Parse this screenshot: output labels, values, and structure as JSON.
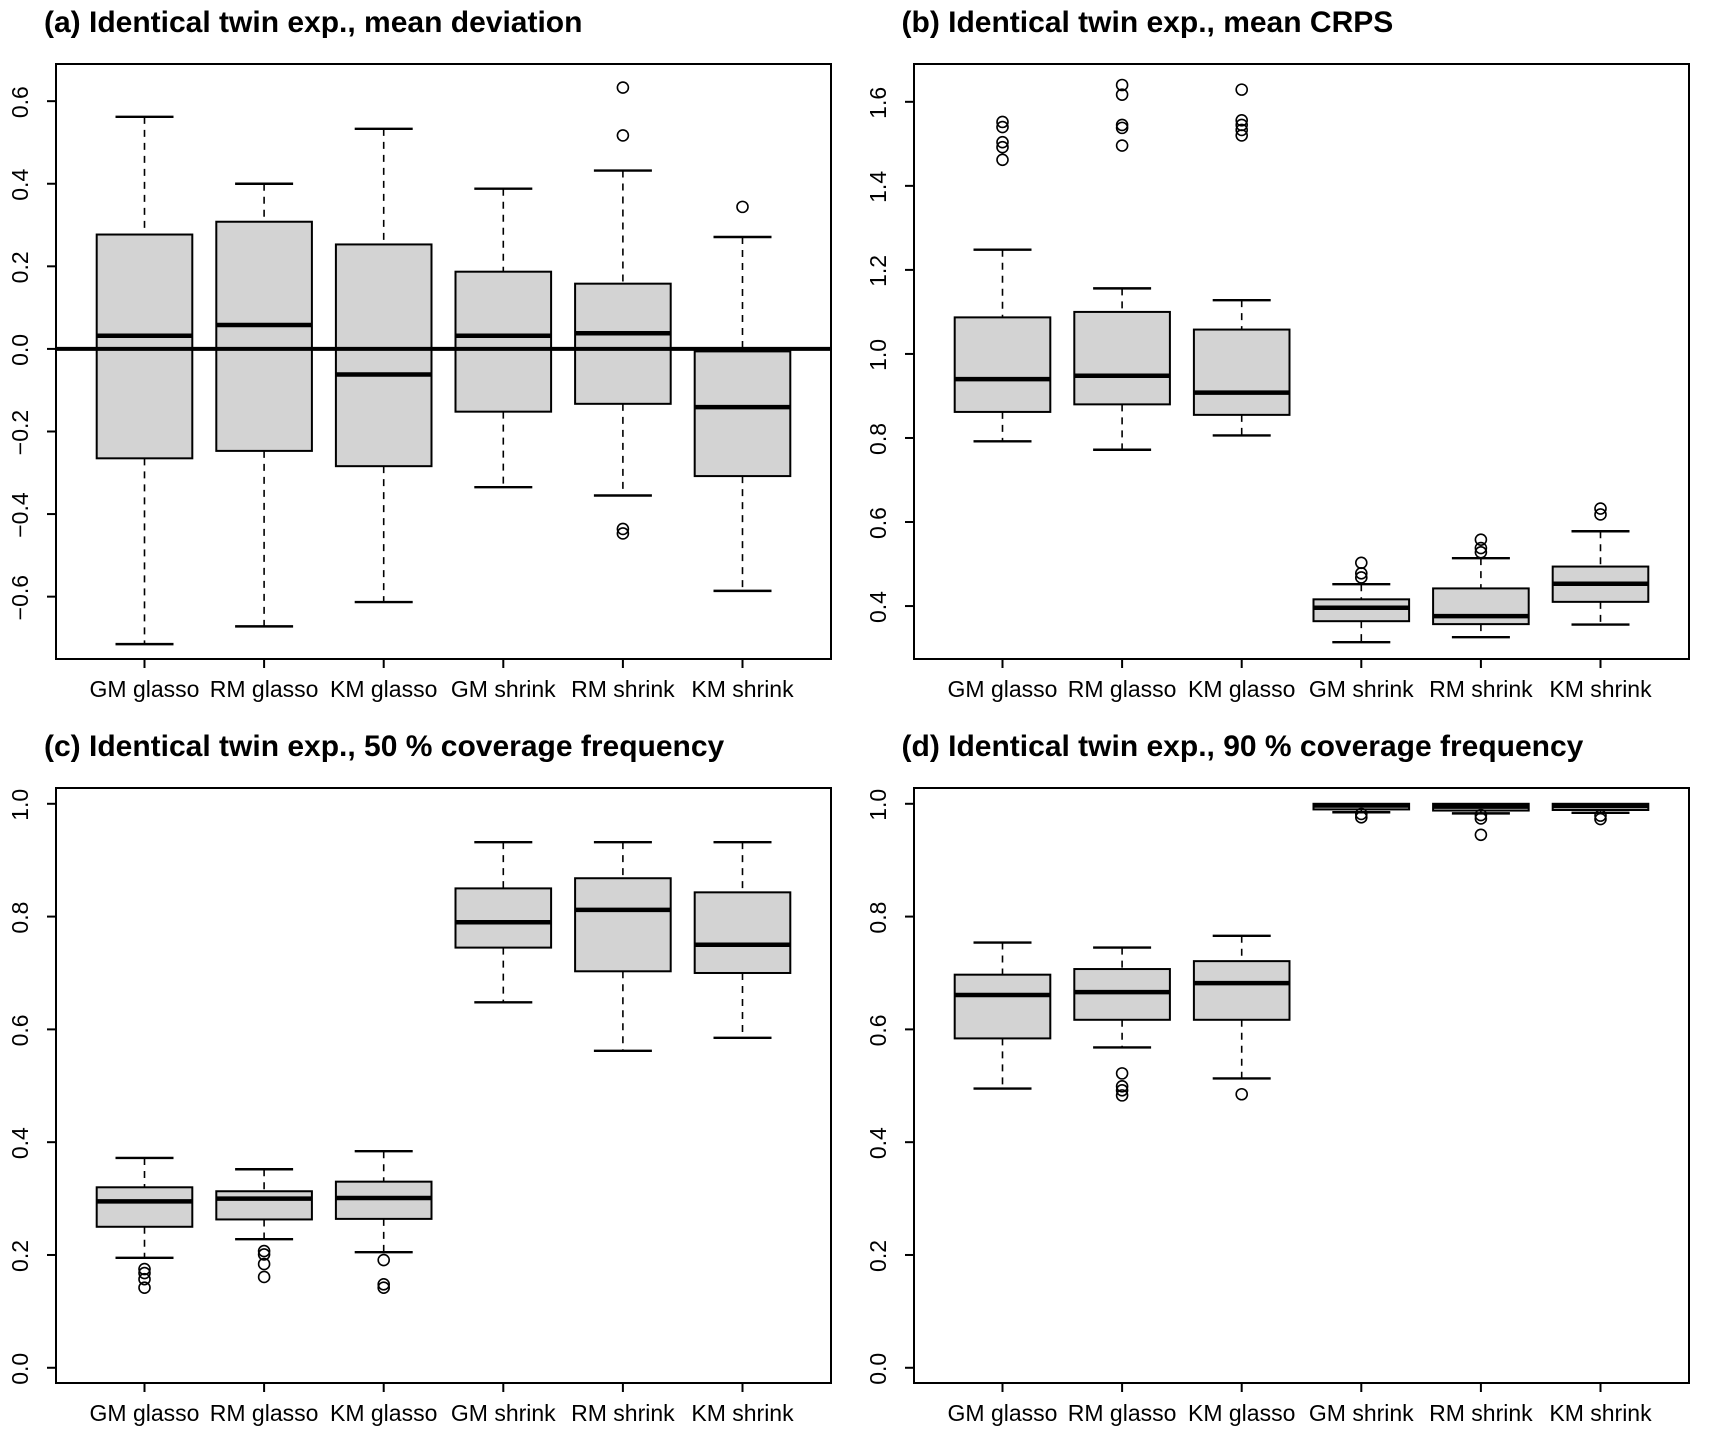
{
  "page": {
    "background": "#ffffff",
    "line_color": "#000000",
    "box_fill": "#d3d3d3"
  },
  "chart_data": [
    {
      "id": "a",
      "type": "boxplot",
      "title": "(a) Identical twin exp., mean deviation",
      "categories": [
        "GM glasso",
        "RM glasso",
        "KM glasso",
        "GM shrink",
        "RM shrink",
        "KM shrink"
      ],
      "ylim": [
        -0.751,
        0.69
      ],
      "yticks": [
        -0.6,
        -0.4,
        -0.2,
        0.0,
        0.2,
        0.4,
        0.6
      ],
      "refline": 0.0,
      "grid": false,
      "legend": null,
      "series": [
        {
          "name": "GM glasso",
          "low": -0.715,
          "q1": -0.265,
          "med": 0.032,
          "q3": 0.277,
          "high": 0.562,
          "outliers": []
        },
        {
          "name": "RM glasso",
          "low": -0.672,
          "q1": -0.247,
          "med": 0.058,
          "q3": 0.308,
          "high": 0.4,
          "outliers": []
        },
        {
          "name": "KM glasso",
          "low": -0.613,
          "q1": -0.284,
          "med": -0.062,
          "q3": 0.253,
          "high": 0.533,
          "outliers": []
        },
        {
          "name": "GM shrink",
          "low": -0.335,
          "q1": -0.152,
          "med": 0.032,
          "q3": 0.187,
          "high": 0.388,
          "outliers": []
        },
        {
          "name": "RM shrink",
          "low": -0.355,
          "q1": -0.133,
          "med": 0.038,
          "q3": 0.158,
          "high": 0.432,
          "outliers": [
            0.633,
            0.517,
            -0.436,
            -0.447
          ]
        },
        {
          "name": "KM shrink",
          "low": -0.586,
          "q1": -0.308,
          "med": -0.141,
          "q3": -0.006,
          "high": 0.271,
          "outliers": [
            0.344
          ]
        }
      ]
    },
    {
      "id": "b",
      "type": "boxplot",
      "title": "(b) Identical twin exp., mean CRPS",
      "categories": [
        "GM glasso",
        "RM glasso",
        "KM glasso",
        "GM shrink",
        "RM shrink",
        "KM shrink"
      ],
      "ylim": [
        0.274,
        1.69
      ],
      "yticks": [
        0.4,
        0.6,
        0.8,
        1.0,
        1.2,
        1.4,
        1.6
      ],
      "refline": null,
      "grid": false,
      "legend": null,
      "series": [
        {
          "name": "GM glasso",
          "low": 0.792,
          "q1": 0.862,
          "med": 0.94,
          "q3": 1.087,
          "high": 1.248,
          "outliers": [
            1.552,
            1.54,
            1.504,
            1.492,
            1.462
          ]
        },
        {
          "name": "RM glasso",
          "low": 0.772,
          "q1": 0.88,
          "med": 0.948,
          "q3": 1.1,
          "high": 1.156,
          "outliers": [
            1.64,
            1.617,
            1.545,
            1.538,
            1.496
          ]
        },
        {
          "name": "KM glasso",
          "low": 0.806,
          "q1": 0.855,
          "med": 0.908,
          "q3": 1.058,
          "high": 1.128,
          "outliers": [
            1.629,
            1.556,
            1.545,
            1.533,
            1.52
          ]
        },
        {
          "name": "GM shrink",
          "low": 0.314,
          "q1": 0.364,
          "med": 0.396,
          "q3": 0.416,
          "high": 0.452,
          "outliers": [
            0.503,
            0.478,
            0.468
          ]
        },
        {
          "name": "RM shrink",
          "low": 0.326,
          "q1": 0.357,
          "med": 0.376,
          "q3": 0.442,
          "high": 0.514,
          "outliers": [
            0.558,
            0.538,
            0.528
          ]
        },
        {
          "name": "KM shrink",
          "low": 0.356,
          "q1": 0.41,
          "med": 0.453,
          "q3": 0.494,
          "high": 0.578,
          "outliers": [
            0.632,
            0.618
          ]
        }
      ]
    },
    {
      "id": "c",
      "type": "boxplot",
      "title": "(c) Identical twin exp., 50 % coverage frequency",
      "categories": [
        "GM glasso",
        "RM glasso",
        "KM glasso",
        "GM shrink",
        "RM shrink",
        "KM shrink"
      ],
      "ylim": [
        -0.027,
        1.028
      ],
      "yticks": [
        0.0,
        0.2,
        0.4,
        0.6,
        0.8,
        1.0
      ],
      "refline": null,
      "grid": false,
      "legend": null,
      "series": [
        {
          "name": "GM glasso",
          "low": 0.195,
          "q1": 0.25,
          "med": 0.295,
          "q3": 0.32,
          "high": 0.372,
          "outliers": [
            0.175,
            0.168,
            0.157,
            0.142
          ]
        },
        {
          "name": "RM glasso",
          "low": 0.228,
          "q1": 0.263,
          "med": 0.3,
          "q3": 0.313,
          "high": 0.352,
          "outliers": [
            0.207,
            0.201,
            0.184,
            0.161
          ]
        },
        {
          "name": "KM glasso",
          "low": 0.205,
          "q1": 0.264,
          "med": 0.301,
          "q3": 0.33,
          "high": 0.384,
          "outliers": [
            0.191,
            0.148,
            0.142
          ]
        },
        {
          "name": "GM shrink",
          "low": 0.648,
          "q1": 0.745,
          "med": 0.79,
          "q3": 0.85,
          "high": 0.932,
          "outliers": []
        },
        {
          "name": "RM shrink",
          "low": 0.562,
          "q1": 0.703,
          "med": 0.812,
          "q3": 0.868,
          "high": 0.932,
          "outliers": []
        },
        {
          "name": "KM shrink",
          "low": 0.585,
          "q1": 0.7,
          "med": 0.75,
          "q3": 0.843,
          "high": 0.932,
          "outliers": []
        }
      ]
    },
    {
      "id": "d",
      "type": "boxplot",
      "title": "(d) Identical twin exp., 90 % coverage frequency",
      "categories": [
        "GM glasso",
        "RM glasso",
        "KM glasso",
        "GM shrink",
        "RM shrink",
        "KM shrink"
      ],
      "ylim": [
        -0.027,
        1.028
      ],
      "yticks": [
        0.0,
        0.2,
        0.4,
        0.6,
        0.8,
        1.0
      ],
      "refline": null,
      "grid": false,
      "legend": null,
      "series": [
        {
          "name": "GM glasso",
          "low": 0.495,
          "q1": 0.584,
          "med": 0.661,
          "q3": 0.697,
          "high": 0.754,
          "outliers": []
        },
        {
          "name": "RM glasso",
          "low": 0.568,
          "q1": 0.617,
          "med": 0.666,
          "q3": 0.707,
          "high": 0.745,
          "outliers": [
            0.522,
            0.499,
            0.492,
            0.483
          ]
        },
        {
          "name": "KM glasso",
          "low": 0.513,
          "q1": 0.617,
          "med": 0.682,
          "q3": 0.721,
          "high": 0.766,
          "outliers": [
            0.485
          ]
        },
        {
          "name": "GM shrink",
          "low": 0.985,
          "q1": 0.99,
          "med": 0.997,
          "q3": 1.0,
          "high": 1.0,
          "outliers": [
            0.982,
            0.976
          ]
        },
        {
          "name": "RM shrink",
          "low": 0.983,
          "q1": 0.988,
          "med": 0.995,
          "q3": 1.0,
          "high": 1.0,
          "outliers": [
            0.98,
            0.974,
            0.945
          ]
        },
        {
          "name": "KM shrink",
          "low": 0.984,
          "q1": 0.989,
          "med": 0.996,
          "q3": 1.0,
          "high": 1.0,
          "outliers": [
            0.979,
            0.973
          ]
        }
      ]
    }
  ]
}
